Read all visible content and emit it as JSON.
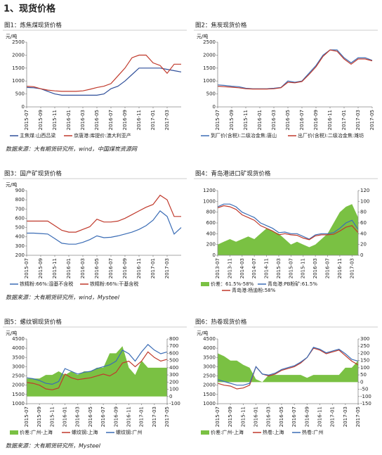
{
  "header": {
    "title": "1、现货价格"
  },
  "sources": [
    "数据来源：大有期货研究所，wind，中国煤炭资源网",
    "数据来源：大有期货研究所，wind，Mysteel",
    "数据来源：大有期货研究所，Mysteel"
  ],
  "chart_data": [
    {
      "type": "line",
      "title": "图1：炼焦煤现货价格",
      "y_label": "元/吨",
      "legend": "bottom",
      "categories": [
        "2015-07",
        null,
        "2015-09",
        null,
        "2015-11",
        null,
        "2016-01",
        null,
        "2016-03",
        null,
        "2016-05",
        null,
        "2016-07",
        null,
        "2016-09",
        null,
        "2016-11",
        null,
        "2017-01",
        null,
        "2017-03",
        null,
        null
      ],
      "ylim": [
        0,
        2500
      ],
      "yticks": [
        0,
        500,
        1000,
        1500,
        2000,
        2500
      ],
      "series": [
        {
          "name": "主焦煤:山西吕梁",
          "color": "#2f4f9a",
          "values": [
            750,
            740,
            700,
            600,
            500,
            450,
            450,
            450,
            450,
            450,
            450,
            500,
            700,
            800,
            1000,
            1250,
            1500,
            1500,
            1500,
            1500,
            1450,
            1400,
            1350
          ]
        },
        {
          "name": "京唐港:库提价:澳大利亚产",
          "color": "#c0392b",
          "values": [
            800,
            780,
            700,
            650,
            620,
            600,
            600,
            600,
            620,
            680,
            750,
            800,
            900,
            1200,
            1500,
            1900,
            2000,
            2000,
            1700,
            1600,
            1300,
            1650,
            1650
          ]
        }
      ]
    },
    {
      "type": "line",
      "title": "图2：焦炭现货价格",
      "y_label": "元/吨",
      "legend": "bottom",
      "categories": [
        "2015-07",
        null,
        "2015-09",
        null,
        "2015-11",
        null,
        "2016-01",
        null,
        "2016-03",
        null,
        "2016-05",
        null,
        "2016-07",
        null,
        "2016-09",
        null,
        "2016-11",
        null,
        "2017-01",
        null,
        "2017-03",
        null,
        "2017-05"
      ],
      "ylim": [
        0,
        2500
      ],
      "yticks": [
        0,
        500,
        1000,
        1500,
        2000,
        2500
      ],
      "series": [
        {
          "name": "到厂价(含税):二级冶金焦:唐山",
          "color": "#3a6cb5",
          "values": [
            850,
            830,
            800,
            780,
            720,
            700,
            700,
            700,
            720,
            750,
            1000,
            950,
            1000,
            1300,
            1600,
            2000,
            2200,
            2200,
            1900,
            1700,
            1900,
            1900,
            1800
          ]
        },
        {
          "name": "出厂价(含税):二级冶金焦:潍坊",
          "color": "#c0392b",
          "values": [
            800,
            780,
            760,
            740,
            700,
            690,
            690,
            690,
            700,
            740,
            950,
            930,
            980,
            1250,
            1550,
            1950,
            2200,
            2150,
            1850,
            1650,
            1850,
            1850,
            1780
          ]
        }
      ]
    },
    {
      "type": "line",
      "title": "图3：国产矿现货价格",
      "y_label": "元/吨",
      "legend": "bottom",
      "categories": [
        "2015-07",
        null,
        "2015-09",
        null,
        "2015-11",
        null,
        "2016-01",
        null,
        "2016-03",
        null,
        "2016-05",
        null,
        "2016-07",
        null,
        "2016-09",
        null,
        "2016-11",
        null,
        "2017-01",
        null,
        "2017-03",
        null,
        null
      ],
      "ylim": [
        200,
        900
      ],
      "yticks": [
        200,
        300,
        400,
        500,
        600,
        700,
        800,
        900
      ],
      "series": [
        {
          "name": "铁精粉:66%:湿基不含税",
          "color": "#3a6cb5",
          "values": [
            440,
            440,
            435,
            430,
            380,
            330,
            320,
            320,
            340,
            370,
            410,
            390,
            395,
            410,
            430,
            450,
            480,
            520,
            580,
            680,
            620,
            430,
            500
          ]
        },
        {
          "name": "铁精粉:66%:干基含税",
          "color": "#c0392b",
          "values": [
            570,
            570,
            570,
            570,
            520,
            470,
            450,
            450,
            480,
            510,
            590,
            560,
            560,
            570,
            600,
            640,
            680,
            720,
            750,
            850,
            800,
            620,
            620
          ]
        }
      ]
    },
    {
      "type": "line",
      "title": "图4：青岛港进口矿现货价格",
      "legend": "bottom",
      "categories": [
        "2013-07",
        null,
        "2013-11",
        null,
        "2014-03",
        null,
        "2014-07",
        null,
        "2014-11",
        null,
        "2015-03",
        null,
        "2015-07",
        null,
        "2015-11",
        null,
        "2016-03",
        null,
        "2016-07",
        null,
        "2016-11",
        null,
        "2017-03",
        null
      ],
      "ylim": [
        0,
        1200
      ],
      "yticks": [
        0,
        200,
        400,
        600,
        800,
        1000,
        1200
      ],
      "y2lim": [
        0,
        120
      ],
      "y2ticks": [
        0,
        20,
        40,
        60,
        80,
        100,
        120
      ],
      "series": [
        {
          "name": "价差：61.5%-58%",
          "color": "#7ac143",
          "type": "area",
          "axis": "y2",
          "values": [
            20,
            25,
            30,
            25,
            30,
            35,
            30,
            40,
            50,
            45,
            40,
            30,
            20,
            25,
            20,
            15,
            20,
            30,
            40,
            60,
            80,
            90,
            95,
            70
          ]
        },
        {
          "name": "青岛港:PB粉矿:61.5%",
          "color": "#3a6cb5",
          "values": [
            900,
            950,
            950,
            900,
            800,
            750,
            700,
            600,
            550,
            500,
            420,
            430,
            400,
            400,
            350,
            300,
            380,
            400,
            400,
            420,
            500,
            600,
            650,
            480
          ]
        },
        {
          "name": "青岛港:杨迪粉:58%",
          "color": "#c0392b",
          "values": [
            880,
            920,
            900,
            850,
            750,
            700,
            650,
            550,
            500,
            450,
            380,
            400,
            380,
            370,
            320,
            290,
            360,
            380,
            380,
            390,
            450,
            520,
            550,
            420
          ]
        }
      ]
    },
    {
      "type": "line",
      "title": "图5：螺纹钢现货价格",
      "y_label": "元/吨",
      "legend": "bottom",
      "categories": [
        "2015-07",
        null,
        "2015-09",
        null,
        "2015-11",
        null,
        "2016-01",
        null,
        "2016-03",
        null,
        "2016-05",
        null,
        "2016-07",
        null,
        "2016-09",
        null,
        "2016-11",
        null,
        "2017-01",
        null,
        "2017-03",
        null,
        "2017-05"
      ],
      "ylim": [
        1000,
        4500
      ],
      "yticks": [
        1000,
        1500,
        2000,
        2500,
        3000,
        3500,
        4000,
        4500
      ],
      "y2lim": [
        -100,
        800
      ],
      "y2ticks": [
        -100,
        0,
        100,
        200,
        300,
        400,
        500,
        600,
        700,
        800
      ],
      "series": [
        {
          "name": "价差:广州-上海",
          "color": "#7ac143",
          "type": "area",
          "axis": "y2",
          "values": [
            250,
            250,
            250,
            300,
            300,
            350,
            300,
            350,
            300,
            350,
            350,
            400,
            400,
            600,
            600,
            700,
            400,
            300,
            500,
            400,
            400,
            400,
            400
          ]
        },
        {
          "name": "螺纹钢:上海",
          "color": "#c0392b",
          "values": [
            2150,
            2100,
            2000,
            1800,
            1750,
            1850,
            2600,
            2400,
            2300,
            2350,
            2400,
            2500,
            2600,
            2500,
            2700,
            3200,
            3300,
            3000,
            3300,
            3800,
            3500,
            3300,
            3400
          ]
        },
        {
          "name": "螺纹钢:广州",
          "color": "#3a6cb5",
          "values": [
            2400,
            2350,
            2250,
            2100,
            2050,
            2200,
            2900,
            2750,
            2600,
            2700,
            2750,
            2900,
            3000,
            3100,
            3300,
            3900,
            3700,
            3300,
            3800,
            4200,
            3900,
            3700,
            3800
          ]
        }
      ]
    },
    {
      "type": "line",
      "title": "图6：热卷现货价格",
      "y_label": "元/吨",
      "legend": "bottom",
      "categories": [
        "2015-07",
        null,
        "2015-09",
        null,
        "2015-11",
        null,
        "2016-01",
        null,
        "2016-03",
        null,
        "2016-05",
        null,
        "2016-07",
        null,
        "2016-09",
        null,
        "2016-11",
        null,
        "2017-01",
        null,
        "2017-03",
        null,
        "2017-05"
      ],
      "ylim": [
        1000,
        4500
      ],
      "yticks": [
        1000,
        1500,
        2000,
        2500,
        3000,
        3500,
        4000,
        4500
      ],
      "y2lim": [
        -150,
        300
      ],
      "y2ticks": [
        -150,
        -100,
        -50,
        0,
        50,
        100,
        150,
        200,
        250,
        300
      ],
      "series": [
        {
          "name": "价差:广州-上海",
          "color": "#7ac143",
          "type": "area",
          "axis": "y2",
          "values": [
            200,
            180,
            150,
            150,
            120,
            100,
            20,
            0,
            50,
            50,
            50,
            50,
            50,
            50,
            30,
            50,
            50,
            50,
            50,
            50,
            100,
            100,
            150
          ]
        },
        {
          "name": "热卷:上海",
          "color": "#c0392b",
          "values": [
            2100,
            2000,
            1950,
            1800,
            1850,
            2000,
            3000,
            2600,
            2500,
            2600,
            2800,
            2900,
            3000,
            3200,
            3500,
            4000,
            3900,
            3700,
            3800,
            3900,
            3600,
            3300,
            3100
          ]
        },
        {
          "name": "热卷:广州",
          "color": "#3a6cb5",
          "values": [
            2300,
            2200,
            2100,
            2000,
            2000,
            2100,
            3000,
            2600,
            2550,
            2650,
            2850,
            2950,
            3050,
            3250,
            3500,
            4050,
            3950,
            3750,
            3850,
            3950,
            3700,
            3400,
            3300
          ]
        }
      ]
    }
  ]
}
